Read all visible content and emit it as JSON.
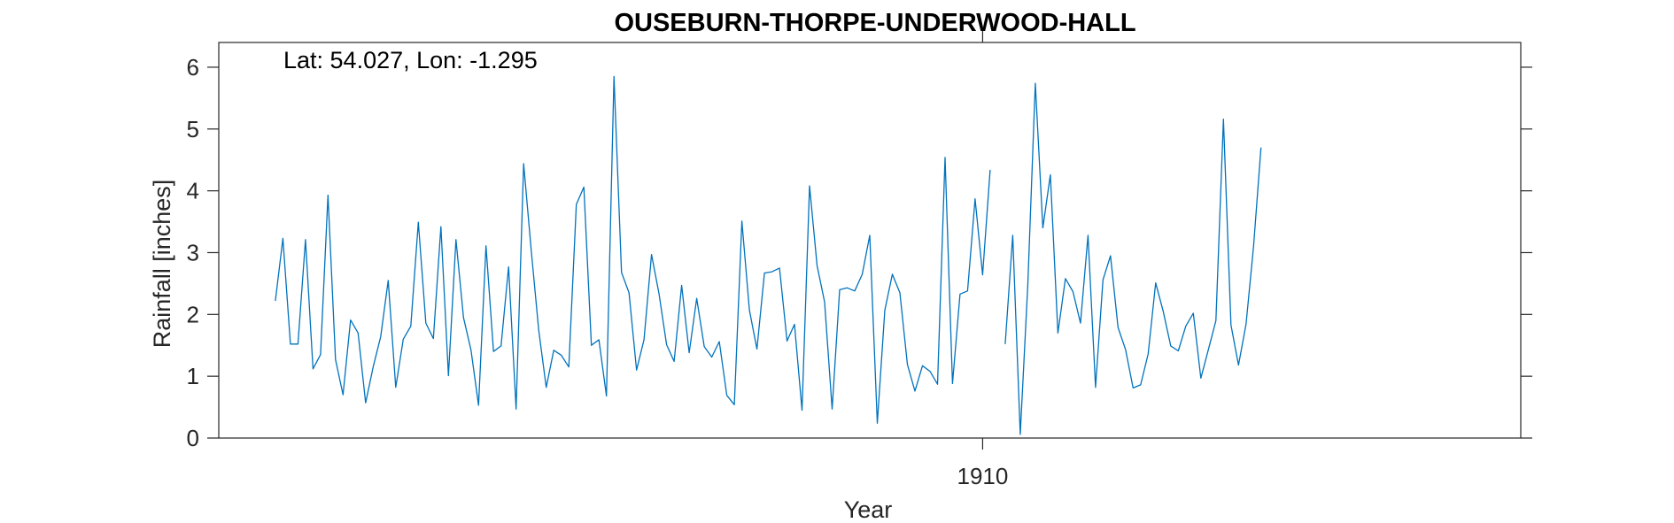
{
  "chart_data": {
    "type": "line",
    "title": "OUSEBURN-THORPE-UNDERWOOD-HALL",
    "xlabel": "Year",
    "ylabel": "Rainfall [inches]",
    "annotation": "Lat: 54.027, Lon: -1.295",
    "x_ticks": [
      {
        "value": 1910,
        "label": "1910"
      }
    ],
    "y_ticks": [
      {
        "value": 0,
        "label": "0"
      },
      {
        "value": 1,
        "label": "1"
      },
      {
        "value": 2,
        "label": "2"
      },
      {
        "value": 3,
        "label": "3"
      },
      {
        "value": 4,
        "label": "4"
      },
      {
        "value": 5,
        "label": "5"
      },
      {
        "value": 6,
        "label": "6"
      }
    ],
    "xlim": [
      1901.54,
      1915.96
    ],
    "ylim": [
      0,
      6.4
    ],
    "grid": false,
    "line_color": "#0072bd",
    "series": [
      {
        "start": "1902-03",
        "values": [
          2.22,
          3.23,
          1.52,
          1.52,
          3.21,
          1.12,
          1.35,
          3.93,
          1.27,
          0.7,
          1.91,
          1.7,
          0.57,
          1.15,
          1.64,
          2.55,
          0.82,
          1.6,
          1.81,
          3.49,
          1.86,
          1.61,
          3.42,
          1.01,
          3.21,
          1.95,
          1.42,
          0.53,
          3.11,
          1.4,
          1.49,
          2.77,
          0.47,
          4.44,
          3.05,
          1.75,
          0.82,
          1.42,
          1.34,
          1.15,
          3.78,
          4.06,
          1.5,
          1.59,
          0.68,
          5.85,
          2.68,
          2.35,
          1.1,
          1.59,
          2.97,
          2.33,
          1.51,
          1.24,
          2.47,
          1.38,
          2.26,
          1.48,
          1.31,
          1.56,
          0.69,
          0.54,
          3.51,
          2.07,
          1.44,
          2.67,
          2.69,
          2.75,
          1.57,
          1.84,
          0.45,
          4.08,
          2.79,
          2.2,
          0.47,
          2.4,
          2.43,
          2.38,
          2.65,
          3.28,
          0.24,
          2.07,
          2.65,
          2.35,
          1.19,
          0.76,
          1.17,
          1.08,
          0.87,
          4.54,
          0.88,
          2.33,
          2.38,
          3.87,
          2.64,
          4.34,
          null,
          1.52,
          3.28,
          0.06,
          2.47,
          5.74,
          3.4,
          4.26,
          1.7,
          2.58,
          2.37,
          1.86,
          3.28,
          0.82,
          2.56,
          2.95,
          1.79,
          1.43,
          0.81,
          0.86,
          1.36,
          2.51,
          2.05,
          1.49,
          1.41,
          1.81,
          2.02,
          0.97,
          1.43,
          1.9,
          5.16,
          1.83,
          1.18,
          1.84,
          3.1,
          4.7
        ]
      }
    ]
  }
}
